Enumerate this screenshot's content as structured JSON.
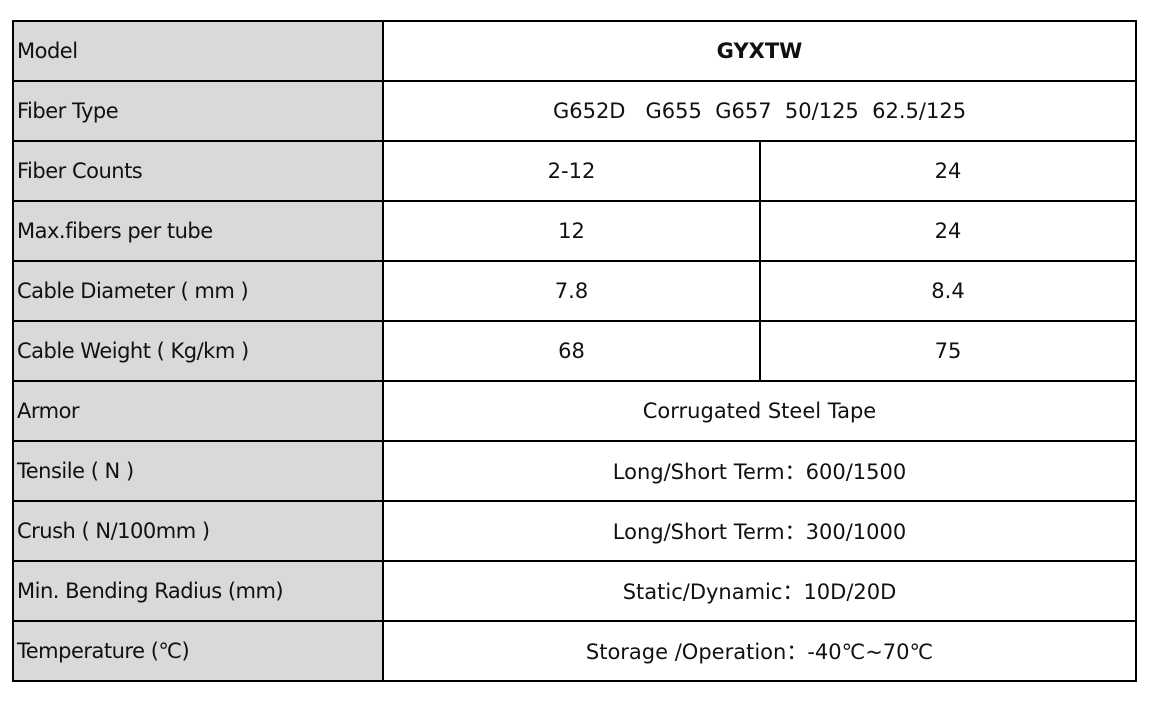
{
  "table": {
    "rows": [
      {
        "label": "Model",
        "cells": [
          "GYXTW"
        ]
      },
      {
        "label": "Fiber Type",
        "cells": [
          "G652D   G655  G657  50/125  62.5/125"
        ]
      },
      {
        "label": "Fiber Counts",
        "cells": [
          "2-12",
          "24"
        ]
      },
      {
        "label": "Max.fibers per tube",
        "cells": [
          "12",
          "24"
        ]
      },
      {
        "label": "Cable Diameter ( mm )",
        "cells": [
          "7.8",
          "8.4"
        ]
      },
      {
        "label": "Cable Weight ( Kg/km )",
        "cells": [
          "68",
          "75"
        ]
      },
      {
        "label": "Armor",
        "cells": [
          "Corrugated Steel Tape"
        ]
      },
      {
        "label": "Tensile ( N )",
        "cells": [
          "Long/Short Term：600/1500"
        ]
      },
      {
        "label": "Crush ( N/100mm )",
        "cells": [
          "Long/Short Term：300/1000"
        ]
      },
      {
        "label": "Min. Bending Radius (mm)",
        "cells": [
          "Static/Dynamic：10D/20D"
        ]
      },
      {
        "label": "Temperature (℃)",
        "cells": [
          "Storage /Operation：-40℃~70℃"
        ]
      }
    ]
  }
}
